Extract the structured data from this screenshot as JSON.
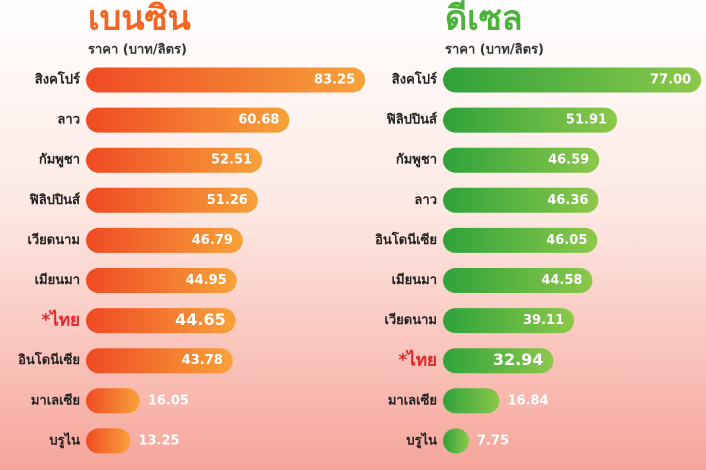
{
  "chart_data": [
    {
      "type": "bar",
      "title": "เบนซิน",
      "subtitle": "ราคา (บาท/ลิตร)",
      "categories": [
        "สิงคโปร์",
        "ลาว",
        "กัมพูชา",
        "ฟิลิปปินส์",
        "เวียดนาม",
        "เมียนมา",
        "*ไทย",
        "อินโดนีเซีย",
        "มาเลเซีย",
        "บรูไน"
      ],
      "values": [
        83.25,
        60.68,
        52.51,
        51.26,
        46.79,
        44.95,
        44.65,
        43.78,
        16.05,
        13.25
      ],
      "value_labels": [
        "83.25",
        "60.68",
        "52.51",
        "51.26",
        "46.79",
        "44.95",
        "44.65",
        "43.78",
        "16.05",
        "13.25"
      ],
      "color": [
        "#ef4a24",
        "#f7a23a"
      ],
      "title_color": "#f26522",
      "highlight_index": 6,
      "highlight_color": "#e3262b",
      "xlim": [
        0,
        85
      ]
    },
    {
      "type": "bar",
      "title": "ดีเซล",
      "subtitle": "ราคา (บาท/ลิตร)",
      "categories": [
        "สิงคโปร์",
        "ฟิลิปปินส์",
        "กัมพูชา",
        "ลาว",
        "อินโดนีเซีย",
        "เมียนมา",
        "เวียดนาม",
        "*ไทย",
        "มาเลเซีย",
        "บรูไน"
      ],
      "values": [
        77.0,
        51.91,
        46.59,
        46.36,
        46.05,
        44.58,
        39.11,
        32.94,
        16.84,
        7.75
      ],
      "value_labels": [
        "77.00",
        "51.91",
        "46.59",
        "46.36",
        "46.05",
        "44.58",
        "39.11",
        "32.94",
        "16.84",
        "7.75"
      ],
      "color": [
        "#2fa23a",
        "#8cc84b"
      ],
      "title_color": "#4bb23a",
      "highlight_index": 7,
      "highlight_color": "#e3262b",
      "xlim": [
        0,
        85
      ]
    }
  ]
}
